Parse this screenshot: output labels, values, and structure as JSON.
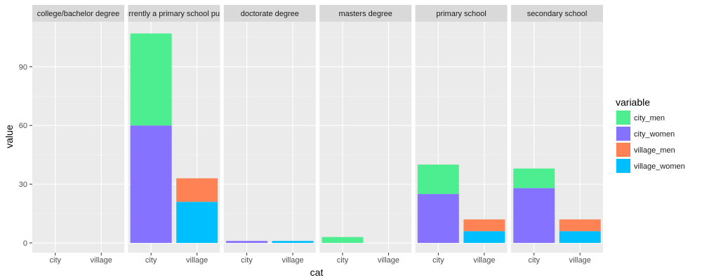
{
  "chart_data": {
    "type": "bar",
    "stacked": true,
    "facets": [
      "college/bachelor degree",
      "currently a primary school pupil",
      "doctorate degree",
      "masters degree",
      "primary school",
      "secondary school"
    ],
    "categories": [
      "city",
      "village"
    ],
    "xlabel": "cat",
    "ylabel": "value",
    "ylim": [
      -5,
      113
    ],
    "yticks": [
      0,
      30,
      60,
      90
    ],
    "grid": true,
    "legend": {
      "title": "variable",
      "position": "right",
      "entries": [
        {
          "name": "city_men",
          "color": "#4DEE8F"
        },
        {
          "name": "city_women",
          "color": "#8572FF"
        },
        {
          "name": "village_men",
          "color": "#FF8254"
        },
        {
          "name": "village_women",
          "color": "#00BFFF"
        }
      ]
    },
    "stacks": [
      {
        "facet": "college/bachelor degree",
        "category": "city",
        "segments": []
      },
      {
        "facet": "college/bachelor degree",
        "category": "village",
        "segments": []
      },
      {
        "facet": "currently a primary school pupil",
        "category": "city",
        "segments": [
          {
            "series": "city_women",
            "value": 60
          },
          {
            "series": "city_men",
            "value": 47
          }
        ]
      },
      {
        "facet": "currently a primary school pupil",
        "category": "village",
        "segments": [
          {
            "series": "village_women",
            "value": 21
          },
          {
            "series": "village_men",
            "value": 12
          }
        ]
      },
      {
        "facet": "doctorate degree",
        "category": "city",
        "segments": [
          {
            "series": "city_women",
            "value": 1
          }
        ]
      },
      {
        "facet": "doctorate degree",
        "category": "village",
        "segments": [
          {
            "series": "village_women",
            "value": 1
          }
        ]
      },
      {
        "facet": "masters degree",
        "category": "city",
        "segments": [
          {
            "series": "city_men",
            "value": 3
          }
        ]
      },
      {
        "facet": "masters degree",
        "category": "village",
        "segments": []
      },
      {
        "facet": "primary school",
        "category": "city",
        "segments": [
          {
            "series": "city_women",
            "value": 25
          },
          {
            "series": "city_men",
            "value": 15
          }
        ]
      },
      {
        "facet": "primary school",
        "category": "village",
        "segments": [
          {
            "series": "village_women",
            "value": 6
          },
          {
            "series": "village_men",
            "value": 6
          }
        ]
      },
      {
        "facet": "secondary school",
        "category": "city",
        "segments": [
          {
            "series": "city_women",
            "value": 28
          },
          {
            "series": "city_men",
            "value": 10
          }
        ]
      },
      {
        "facet": "secondary school",
        "category": "village",
        "segments": [
          {
            "series": "village_women",
            "value": 6
          },
          {
            "series": "village_men",
            "value": 6
          }
        ]
      }
    ]
  }
}
